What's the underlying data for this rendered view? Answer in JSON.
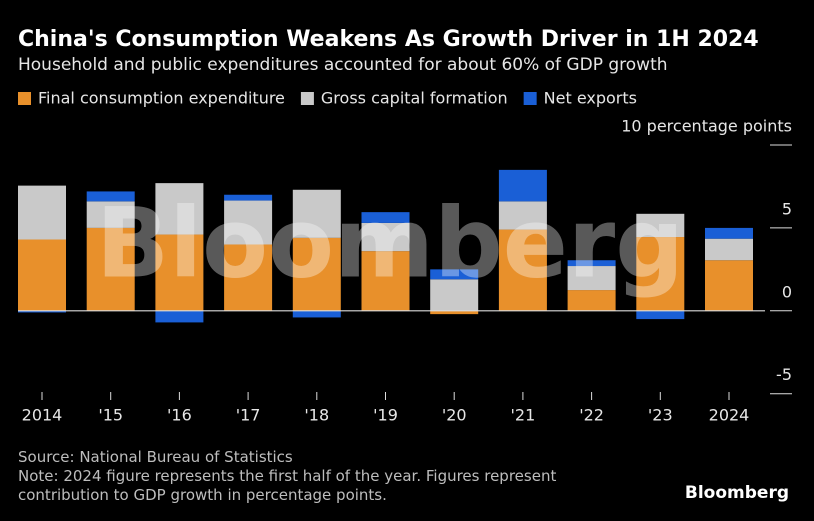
{
  "chart_data": {
    "type": "stacked-bar",
    "title": "China's Consumption Weakens As Growth Driver in 1H 2024",
    "subtitle": "Household and public expenditures accounted for about 60% of GDP growth",
    "categories": [
      "2014",
      "'15",
      "'16",
      "'17",
      "'18",
      "'19",
      "'20",
      "'21",
      "'22",
      "'23",
      "2024"
    ],
    "series": [
      {
        "name": "Final consumption expenditure",
        "color": "#e8902b",
        "values": [
          4.3,
          5.0,
          4.6,
          4.0,
          4.4,
          3.6,
          -0.2,
          4.9,
          1.25,
          4.45,
          3.05
        ]
      },
      {
        "name": "Gross capital formation",
        "color": "#c9c9c9",
        "values": [
          3.25,
          1.6,
          3.1,
          2.65,
          2.9,
          1.7,
          1.9,
          1.7,
          1.45,
          1.4,
          1.3
        ]
      },
      {
        "name": "Net exports",
        "color": "#1a5fd6",
        "values": [
          -0.1,
          0.6,
          -0.7,
          0.35,
          -0.4,
          0.65,
          0.6,
          1.9,
          0.35,
          -0.5,
          0.65
        ]
      }
    ],
    "ylim": [
      -5.5,
      10
    ],
    "yticks": [
      -5,
      0,
      5,
      {
        "value": 10,
        "label": "10 percentage points"
      }
    ],
    "source": "Source: National Bureau of Statistics",
    "note": "Note: 2024 figure represents the first half of the year. Figures represent contribution to GDP growth in percentage points.",
    "watermark": "Bloomberg",
    "logo": "Bloomberg"
  }
}
